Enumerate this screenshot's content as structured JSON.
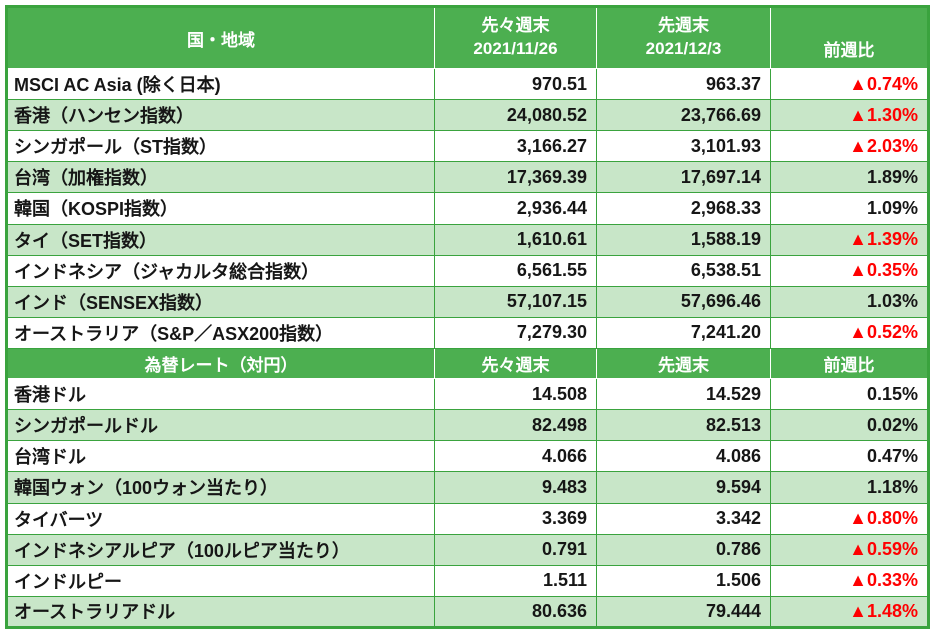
{
  "colors": {
    "header_bg": "#4caf50",
    "row_alt_bg": "#c8e6c8",
    "grid_green": "#3aa33e",
    "negative_red": "#ff0000",
    "header_text": "#ffffff",
    "body_text": "#161616"
  },
  "chart_data": [
    {
      "type": "table",
      "title": "国・地域",
      "header": {
        "col1": "国・地域",
        "col2_line1": "先々週末",
        "col2_line2": "2021/11/26",
        "col3_line1": "先週末",
        "col3_line2": "2021/12/3",
        "col4": "前週比"
      },
      "rows": [
        {
          "name": "MSCI AC Asia (除く日本)",
          "prev2": "970.51",
          "prev": "963.37",
          "change": "▲0.74%"
        },
        {
          "name": "香港（ハンセン指数）",
          "prev2": "24,080.52",
          "prev": "23,766.69",
          "change": "▲1.30%"
        },
        {
          "name": "シンガポール（ST指数）",
          "prev2": "3,166.27",
          "prev": "3,101.93",
          "change": "▲2.03%"
        },
        {
          "name": "台湾（加権指数）",
          "prev2": "17,369.39",
          "prev": "17,697.14",
          "change": "1.89%"
        },
        {
          "name": "韓国（KOSPI指数）",
          "prev2": "2,936.44",
          "prev": "2,968.33",
          "change": "1.09%"
        },
        {
          "name": "タイ（SET指数）",
          "prev2": "1,610.61",
          "prev": "1,588.19",
          "change": "▲1.39%"
        },
        {
          "name": "インドネシア（ジャカルタ総合指数）",
          "prev2": "6,561.55",
          "prev": "6,538.51",
          "change": "▲0.35%"
        },
        {
          "name": "インド（SENSEX指数）",
          "prev2": "57,107.15",
          "prev": "57,696.46",
          "change": "1.03%"
        },
        {
          "name": "オーストラリア（S&P／ASX200指数）",
          "prev2": "7,279.30",
          "prev": "7,241.20",
          "change": "▲0.52%"
        }
      ]
    },
    {
      "type": "table",
      "title": "為替レート（対円）",
      "header": {
        "col1": "為替レート（対円）",
        "col2": "先々週末",
        "col3": "先週末",
        "col4": "前週比"
      },
      "rows": [
        {
          "name": "香港ドル",
          "prev2": "14.508",
          "prev": "14.529",
          "change": "0.15%"
        },
        {
          "name": "シンガポールドル",
          "prev2": "82.498",
          "prev": "82.513",
          "change": "0.02%"
        },
        {
          "name": "台湾ドル",
          "prev2": "4.066",
          "prev": "4.086",
          "change": "0.47%"
        },
        {
          "name": "韓国ウォン（100ウォン当たり）",
          "prev2": "9.483",
          "prev": "9.594",
          "change": "1.18%"
        },
        {
          "name": "タイバーツ",
          "prev2": "3.369",
          "prev": "3.342",
          "change": "▲0.80%"
        },
        {
          "name": "インドネシアルピア（100ルピア当たり）",
          "prev2": "0.791",
          "prev": "0.786",
          "change": "▲0.59%"
        },
        {
          "name": "インドルピー",
          "prev2": "1.511",
          "prev": "1.506",
          "change": "▲0.33%"
        },
        {
          "name": "オーストラリアドル",
          "prev2": "80.636",
          "prev": "79.444",
          "change": "▲1.48%"
        }
      ]
    }
  ]
}
